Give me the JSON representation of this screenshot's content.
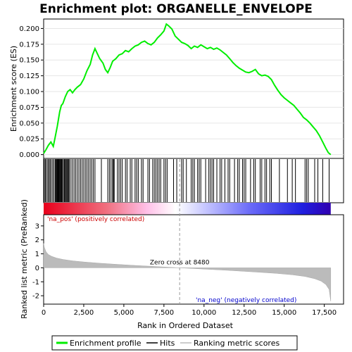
{
  "chart_data": {
    "type": "line",
    "title": "Enrichment plot: ORGANELLE_ENVELOPE",
    "xlabel": "Rank in Ordered Dataset",
    "es_panel": {
      "ylabel": "Enrichment score (ES)",
      "ylim": [
        -0.006,
        0.215
      ],
      "yticks": [
        "0.000",
        "0.025",
        "0.050",
        "0.075",
        "0.100",
        "0.125",
        "0.150",
        "0.175",
        "0.200"
      ],
      "ytick_values": [
        0,
        0.025,
        0.05,
        0.075,
        0.1,
        0.125,
        0.15,
        0.175,
        0.2
      ],
      "series_name": "Enrichment profile",
      "color": "#00ee00",
      "points": [
        [
          0,
          0.002
        ],
        [
          150,
          0.008
        ],
        [
          300,
          0.015
        ],
        [
          450,
          0.02
        ],
        [
          600,
          0.013
        ],
        [
          700,
          0.025
        ],
        [
          850,
          0.045
        ],
        [
          1000,
          0.068
        ],
        [
          1100,
          0.078
        ],
        [
          1200,
          0.081
        ],
        [
          1350,
          0.092
        ],
        [
          1500,
          0.1
        ],
        [
          1650,
          0.103
        ],
        [
          1800,
          0.098
        ],
        [
          1950,
          0.103
        ],
        [
          2100,
          0.107
        ],
        [
          2300,
          0.111
        ],
        [
          2500,
          0.12
        ],
        [
          2700,
          0.133
        ],
        [
          2900,
          0.143
        ],
        [
          3050,
          0.158
        ],
        [
          3200,
          0.168
        ],
        [
          3350,
          0.16
        ],
        [
          3500,
          0.152
        ],
        [
          3700,
          0.145
        ],
        [
          3850,
          0.135
        ],
        [
          4000,
          0.13
        ],
        [
          4150,
          0.138
        ],
        [
          4300,
          0.148
        ],
        [
          4500,
          0.152
        ],
        [
          4700,
          0.158
        ],
        [
          4900,
          0.16
        ],
        [
          5100,
          0.165
        ],
        [
          5300,
          0.163
        ],
        [
          5500,
          0.168
        ],
        [
          5700,
          0.172
        ],
        [
          5900,
          0.174
        ],
        [
          6100,
          0.178
        ],
        [
          6300,
          0.18
        ],
        [
          6500,
          0.176
        ],
        [
          6700,
          0.174
        ],
        [
          6900,
          0.178
        ],
        [
          7100,
          0.185
        ],
        [
          7300,
          0.19
        ],
        [
          7500,
          0.196
        ],
        [
          7650,
          0.207
        ],
        [
          7800,
          0.204
        ],
        [
          8000,
          0.199
        ],
        [
          8200,
          0.188
        ],
        [
          8400,
          0.183
        ],
        [
          8600,
          0.178
        ],
        [
          8800,
          0.176
        ],
        [
          9000,
          0.173
        ],
        [
          9200,
          0.168
        ],
        [
          9400,
          0.172
        ],
        [
          9600,
          0.17
        ],
        [
          9800,
          0.174
        ],
        [
          10000,
          0.171
        ],
        [
          10200,
          0.168
        ],
        [
          10400,
          0.17
        ],
        [
          10600,
          0.167
        ],
        [
          10800,
          0.169
        ],
        [
          11000,
          0.166
        ],
        [
          11200,
          0.162
        ],
        [
          11400,
          0.158
        ],
        [
          11600,
          0.152
        ],
        [
          11800,
          0.146
        ],
        [
          12000,
          0.141
        ],
        [
          12200,
          0.137
        ],
        [
          12400,
          0.134
        ],
        [
          12600,
          0.131
        ],
        [
          12800,
          0.13
        ],
        [
          13000,
          0.132
        ],
        [
          13200,
          0.135
        ],
        [
          13400,
          0.128
        ],
        [
          13600,
          0.125
        ],
        [
          13800,
          0.126
        ],
        [
          14000,
          0.124
        ],
        [
          14200,
          0.119
        ],
        [
          14400,
          0.11
        ],
        [
          14600,
          0.102
        ],
        [
          14800,
          0.095
        ],
        [
          15000,
          0.09
        ],
        [
          15200,
          0.086
        ],
        [
          15400,
          0.082
        ],
        [
          15600,
          0.078
        ],
        [
          15800,
          0.072
        ],
        [
          16000,
          0.066
        ],
        [
          16200,
          0.059
        ],
        [
          16400,
          0.055
        ],
        [
          16600,
          0.05
        ],
        [
          16800,
          0.044
        ],
        [
          17000,
          0.038
        ],
        [
          17200,
          0.03
        ],
        [
          17400,
          0.02
        ],
        [
          17600,
          0.01
        ],
        [
          17750,
          0.003
        ],
        [
          17900,
          0.0
        ]
      ]
    },
    "hits_panel": {
      "series_name": "Hits",
      "hit_ranks": [
        40,
        110,
        180,
        260,
        330,
        400,
        470,
        560,
        640,
        720,
        760,
        800,
        840,
        880,
        920,
        960,
        1000,
        1040,
        1080,
        1120,
        1170,
        1230,
        1290,
        1340,
        1400,
        1450,
        1500,
        1550,
        1600,
        1700,
        1800,
        1900,
        2000,
        2100,
        2200,
        2300,
        2400,
        2500,
        2600,
        2700,
        2800,
        2900,
        3000,
        3100,
        3200,
        3600,
        4000,
        4100,
        4200,
        4300,
        4350,
        4400,
        4600,
        4700,
        4800,
        4900,
        5100,
        5200,
        5400,
        5500,
        5700,
        5800,
        5900,
        6100,
        6200,
        6500,
        6600,
        6800,
        6900,
        7000,
        7100,
        7200,
        7300,
        7500,
        7600,
        7700,
        8100,
        8300,
        8600,
        8700,
        8900,
        9200,
        9300,
        9400,
        9600,
        9700,
        9800,
        10100,
        10300,
        10400,
        10500,
        10600,
        10800,
        11000,
        11100,
        11300,
        11500,
        11600,
        11900,
        12100,
        12200,
        12400,
        12500,
        12600,
        12900,
        13100,
        13200,
        13500,
        13600,
        13800,
        13900,
        14100,
        14200,
        14700,
        15200,
        15500,
        15700,
        16300,
        16400,
        16500,
        16900,
        17100,
        17400,
        17800
      ]
    },
    "metric_panel": {
      "ylabel": "Ranked list metric (PreRanked)",
      "series_name": "Ranking metric scores",
      "ylim": [
        -2.6,
        3.8
      ],
      "yticks": [
        "-2",
        "-1",
        "0",
        "1",
        "2",
        "3"
      ],
      "ytick_values": [
        -2,
        -1,
        0,
        1,
        2,
        3
      ],
      "curve": [
        [
          0,
          1.75
        ],
        [
          50,
          1.45
        ],
        [
          150,
          1.15
        ],
        [
          300,
          0.95
        ],
        [
          500,
          0.82
        ],
        [
          800,
          0.7
        ],
        [
          1200,
          0.6
        ],
        [
          1800,
          0.5
        ],
        [
          2500,
          0.42
        ],
        [
          3500,
          0.33
        ],
        [
          4500,
          0.25
        ],
        [
          5500,
          0.18
        ],
        [
          6500,
          0.12
        ],
        [
          7500,
          0.06
        ],
        [
          8480,
          0.0
        ],
        [
          9500,
          -0.06
        ],
        [
          10500,
          -0.12
        ],
        [
          11500,
          -0.18
        ],
        [
          12500,
          -0.25
        ],
        [
          13500,
          -0.32
        ],
        [
          14500,
          -0.4
        ],
        [
          15500,
          -0.5
        ],
        [
          16300,
          -0.62
        ],
        [
          16900,
          -0.78
        ],
        [
          17300,
          -0.95
        ],
        [
          17600,
          -1.2
        ],
        [
          17800,
          -1.55
        ],
        [
          17900,
          -2.4
        ]
      ],
      "zero_cross_label": "Zero cross at 8480",
      "zero_cross_rank": 8480,
      "pos_label": "'na_pos' (positively correlated)",
      "neg_label": "'na_neg' (negatively correlated)",
      "pos_color": "#cc0000",
      "neg_color": "#0000cc"
    },
    "xlim": [
      0,
      18700
    ],
    "xticks": [
      "0",
      "2,500",
      "5,000",
      "7,500",
      "10,000",
      "12,500",
      "15,000",
      "17,500"
    ],
    "xtick_values": [
      0,
      2500,
      5000,
      7500,
      10000,
      12500,
      15000,
      17500
    ],
    "n_ranks": 17900,
    "legend": {
      "placement": "bottom",
      "items": [
        {
          "label": "Enrichment profile",
          "color": "#00ee00"
        },
        {
          "label": "Hits",
          "color": "#000000"
        },
        {
          "label": "Ranking metric scores",
          "color": "#bbbbbb"
        }
      ]
    }
  }
}
